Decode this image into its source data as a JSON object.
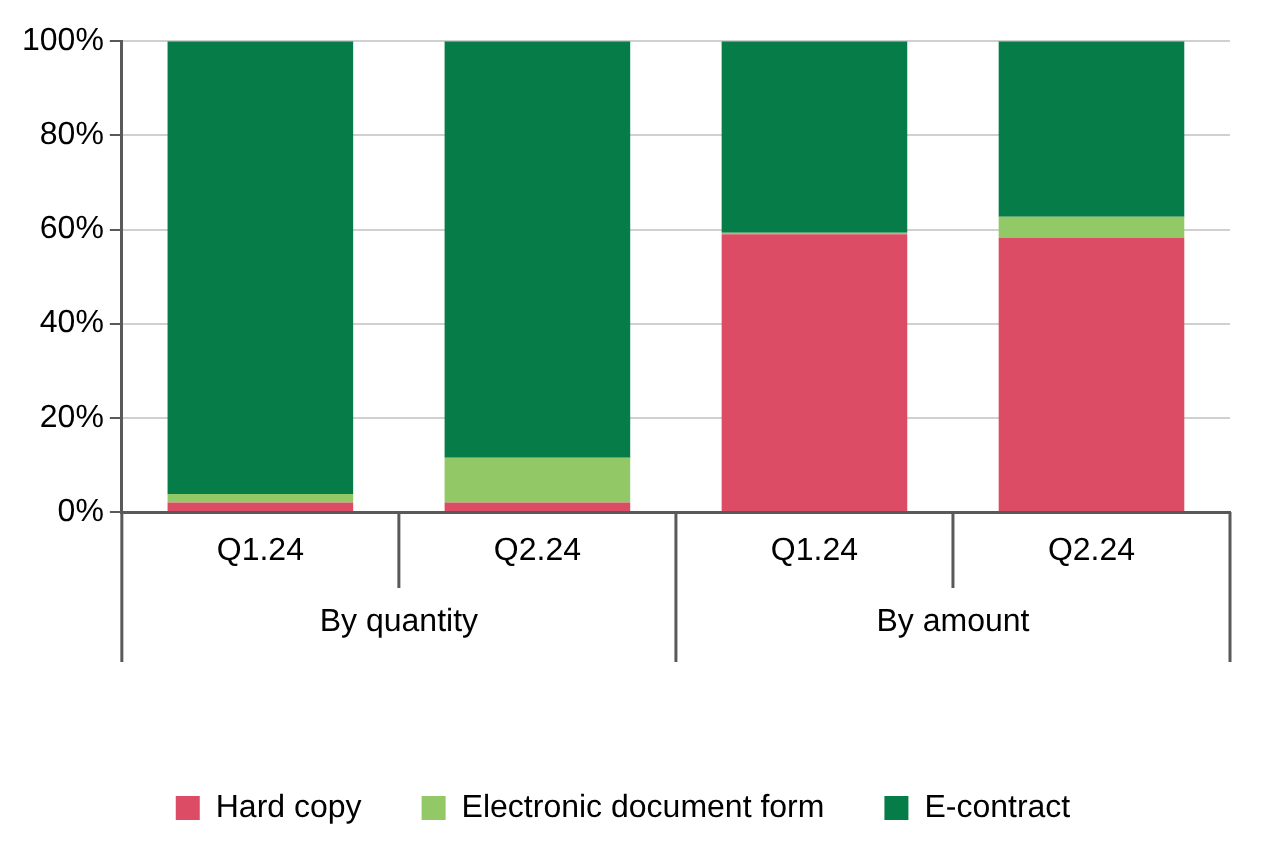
{
  "chart_data": {
    "type": "bar",
    "stacked": true,
    "categories": [
      "Q1.24",
      "Q2.24",
      "Q1.24",
      "Q2.24"
    ],
    "annotations": [
      "By quantity",
      "By amount"
    ],
    "series": [
      {
        "name": "Hard copy",
        "color": "#dc4c64",
        "values": [
          2,
          2,
          59,
          58.2
        ]
      },
      {
        "name": "Electronic document form",
        "color": "#92c966",
        "values": [
          1.8,
          9.5,
          0.3,
          4.5
        ]
      },
      {
        "name": "E-contract",
        "color": "#067d48",
        "values": [
          96.2,
          88.5,
          40.7,
          37.3
        ]
      }
    ],
    "ylim": [
      0,
      100
    ],
    "yticks": [
      {
        "value": 0,
        "label": "0%"
      },
      {
        "value": 20,
        "label": "20%"
      },
      {
        "value": 40,
        "label": "40%"
      },
      {
        "value": 60,
        "label": "60%"
      },
      {
        "value": 80,
        "label": "80%"
      },
      {
        "value": 100,
        "label": "100%"
      }
    ],
    "grid": "y",
    "legend": "bottom"
  }
}
